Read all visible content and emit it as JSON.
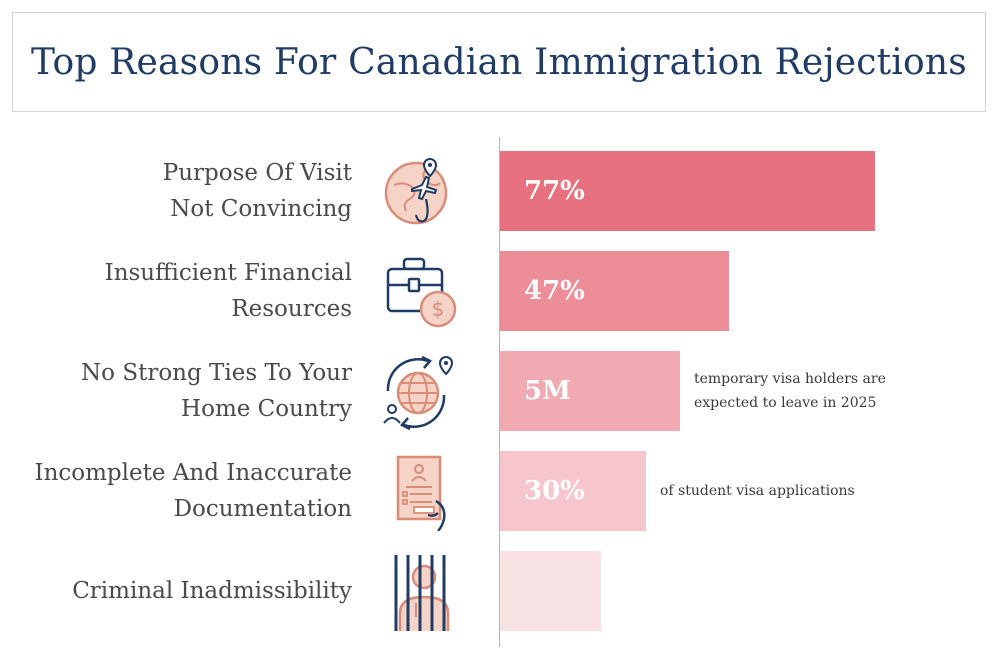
{
  "title": "Top Reasons For Canadian Immigration Rejections",
  "chart_data": {
    "type": "bar",
    "orientation": "horizontal",
    "title": "Top Reasons For Canadian Immigration Rejections",
    "categories": [
      "Purpose Of Visit Not Convincing",
      "Insufficient Financial Resources",
      "No Strong Ties To Your Home Country",
      "Incomplete And Inaccurate Documentation",
      "Criminal Inadmissibility"
    ],
    "category_lines": [
      [
        "Purpose Of Visit",
        "Not Convincing"
      ],
      [
        "Insufficient Financial",
        "Resources"
      ],
      [
        "No Strong Ties To Your",
        "Home Country"
      ],
      [
        "Incomplete And Inaccurate",
        "Documentation"
      ],
      [
        "Criminal Inadmissibility"
      ]
    ],
    "value_labels": [
      "77%",
      "47%",
      "5M",
      "30%",
      ""
    ],
    "relative_lengths": [
      1.0,
      0.61,
      0.48,
      0.39,
      0.27
    ],
    "notes": [
      [],
      [],
      [
        "temporary visa holders are",
        "expected to leave in 2025"
      ],
      [
        "of student visa applications"
      ],
      []
    ],
    "icons": [
      "globe-plane-icon",
      "briefcase-dollar-icon",
      "globe-travel-icon",
      "document-hand-icon",
      "prisoner-bars-icon"
    ],
    "bar_colors": [
      "#e8717f",
      "#ed8d98",
      "#f2aab2",
      "#f6c6cc",
      "#f8e2e4"
    ]
  }
}
